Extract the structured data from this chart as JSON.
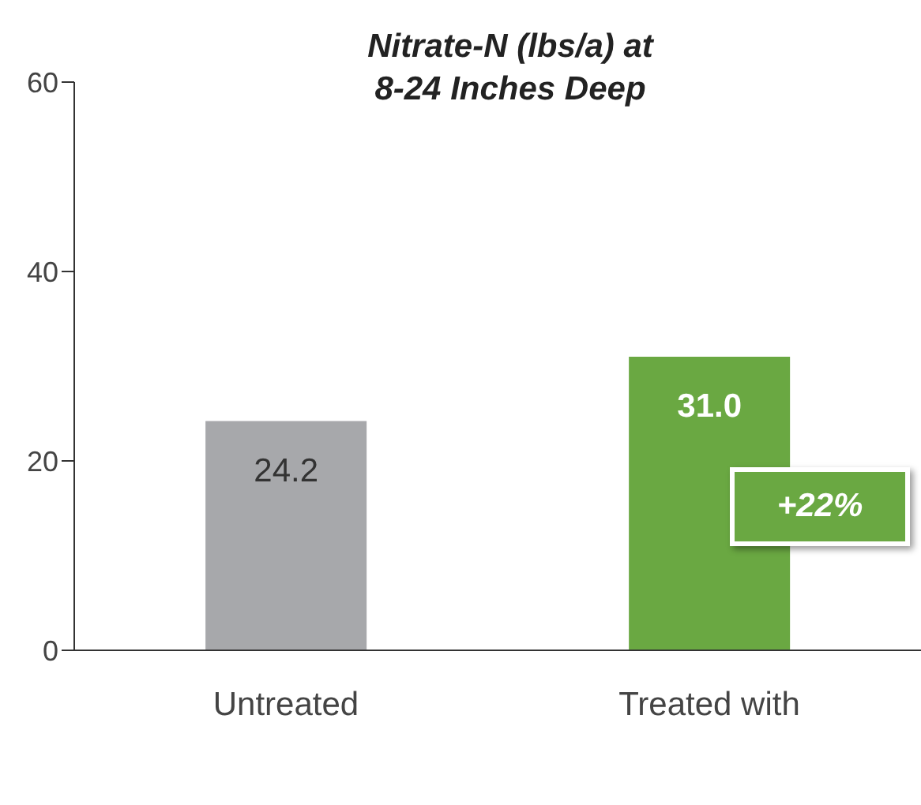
{
  "chart_data": {
    "type": "bar",
    "title": "Nitrate-N (lbs/a) at\n8-24 Inches Deep",
    "categories": [
      "Untreated",
      "Treated with"
    ],
    "values": [
      24.2,
      31.0
    ],
    "colors": [
      "#a7a8ab",
      "#6aa842"
    ],
    "value_labels": [
      "24.2",
      "31.0"
    ],
    "ylim": [
      0,
      60
    ],
    "yticks": [
      0,
      20,
      40,
      60
    ],
    "grid": false,
    "annotations": [
      "+22%"
    ]
  }
}
